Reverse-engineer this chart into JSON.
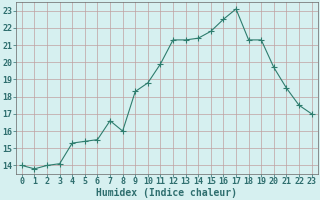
{
  "xlabel": "Humidex (Indice chaleur)",
  "ylabel": "",
  "x": [
    0,
    1,
    2,
    3,
    4,
    5,
    6,
    7,
    8,
    9,
    10,
    11,
    12,
    13,
    14,
    15,
    16,
    17,
    18,
    19,
    20,
    21,
    22,
    23
  ],
  "y": [
    14.0,
    13.8,
    14.0,
    14.1,
    15.3,
    15.4,
    15.5,
    16.6,
    16.0,
    18.3,
    18.8,
    19.9,
    21.3,
    21.3,
    21.4,
    21.8,
    22.5,
    23.1,
    21.3,
    21.3,
    19.7,
    18.5,
    17.5,
    17.0
  ],
  "line_color": "#2e7d6e",
  "marker": "+",
  "marker_size": 4,
  "bg_color": "#d6f0f0",
  "grid_color": "#c0a0a0",
  "ylim": [
    13.5,
    23.5
  ],
  "yticks": [
    14,
    15,
    16,
    17,
    18,
    19,
    20,
    21,
    22,
    23
  ],
  "xticks": [
    0,
    1,
    2,
    3,
    4,
    5,
    6,
    7,
    8,
    9,
    10,
    11,
    12,
    13,
    14,
    15,
    16,
    17,
    18,
    19,
    20,
    21,
    22,
    23
  ],
  "tick_fontsize": 6,
  "label_fontsize": 7
}
